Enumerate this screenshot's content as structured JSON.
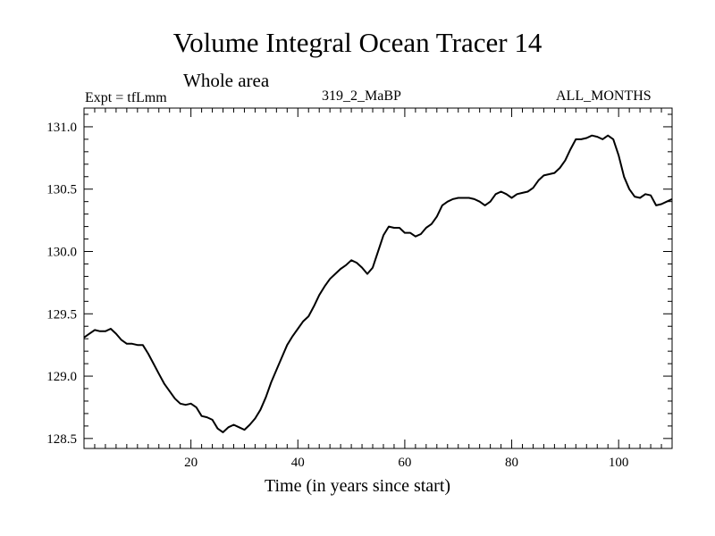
{
  "chart_data": {
    "type": "line",
    "title": "Volume Integral Ocean Tracer 14",
    "subtitle": "Whole area",
    "experiment_label": "Expt = tfLmm",
    "run_label": "319_2_MaBP",
    "period_label": "ALL_MONTHS",
    "xlabel": "Time (in years since start)",
    "ylabel": "",
    "xlim": [
      0,
      110
    ],
    "ylim": [
      128.42,
      131.15
    ],
    "x_ticks": [
      20,
      40,
      60,
      80,
      100
    ],
    "y_ticks": [
      128.5,
      129.0,
      129.5,
      130.0,
      130.5,
      131.0
    ],
    "y_tick_labels": [
      "128.5",
      "129.0",
      "129.5",
      "130.0",
      "130.5",
      "131.0"
    ],
    "grid": false,
    "series": [
      {
        "name": "Tracer 14",
        "color": "#000000",
        "x": [
          0,
          1,
          2,
          3,
          4,
          5,
          6,
          7,
          8,
          9,
          10,
          11,
          12,
          13,
          14,
          15,
          16,
          17,
          18,
          19,
          20,
          21,
          22,
          23,
          24,
          25,
          26,
          27,
          28,
          29,
          30,
          31,
          32,
          33,
          34,
          35,
          36,
          37,
          38,
          39,
          40,
          41,
          42,
          43,
          44,
          45,
          46,
          47,
          48,
          49,
          50,
          51,
          52,
          53,
          54,
          55,
          56,
          57,
          58,
          59,
          60,
          61,
          62,
          63,
          64,
          65,
          66,
          67,
          68,
          69,
          70,
          71,
          72,
          73,
          74,
          75,
          76,
          77,
          78,
          79,
          80,
          81,
          82,
          83,
          84,
          85,
          86,
          87,
          88,
          89,
          90,
          91,
          92,
          93,
          94,
          95,
          96,
          97,
          98,
          99,
          100,
          101,
          102,
          103,
          104,
          105,
          106,
          107,
          108,
          109,
          110
        ],
        "values": [
          129.31,
          129.34,
          129.37,
          129.36,
          129.36,
          129.38,
          129.34,
          129.29,
          129.26,
          129.26,
          129.25,
          129.25,
          129.18,
          129.1,
          129.02,
          128.94,
          128.88,
          128.82,
          128.78,
          128.77,
          128.78,
          128.75,
          128.68,
          128.67,
          128.65,
          128.58,
          128.55,
          128.59,
          128.61,
          128.59,
          128.57,
          128.61,
          128.66,
          128.73,
          128.83,
          128.95,
          129.05,
          129.15,
          129.25,
          129.32,
          129.38,
          129.44,
          129.48,
          129.56,
          129.65,
          129.72,
          129.78,
          129.82,
          129.86,
          129.89,
          129.93,
          129.91,
          129.87,
          129.82,
          129.87,
          130.0,
          130.13,
          130.2,
          130.19,
          130.19,
          130.15,
          130.15,
          130.12,
          130.14,
          130.19,
          130.22,
          130.28,
          130.37,
          130.4,
          130.42,
          130.43,
          130.43,
          130.43,
          130.42,
          130.4,
          130.37,
          130.4,
          130.46,
          130.48,
          130.46,
          130.43,
          130.46,
          130.47,
          130.48,
          130.51,
          130.57,
          130.61,
          130.62,
          130.63,
          130.67,
          130.73,
          130.82,
          130.9,
          130.9,
          130.91,
          130.93,
          130.92,
          130.9,
          130.93,
          130.9,
          130.77,
          130.6,
          130.5,
          130.44,
          130.43,
          130.46,
          130.45,
          130.37,
          130.38,
          130.4,
          130.42
        ]
      }
    ]
  }
}
